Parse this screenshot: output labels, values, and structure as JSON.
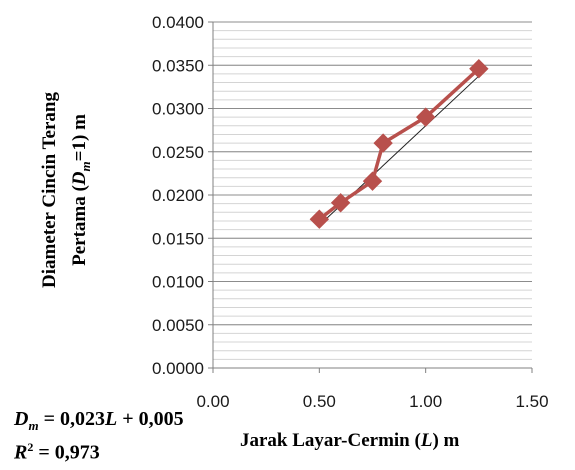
{
  "chart_data": {
    "type": "scatter",
    "ylabel_parts": [
      "Diameter Cincin Terang",
      "Pertama (",
      "D",
      "m",
      "=1) m"
    ],
    "xlabel_parts": [
      "Jarak Layar-Cermin (",
      "L",
      ") m"
    ],
    "xlim": [
      0,
      1.5
    ],
    "ylim": [
      0,
      0.04
    ],
    "xticks": [
      "0.00",
      "0.50",
      "1.00",
      "1.50"
    ],
    "xtick_values": [
      0,
      0.5,
      1.0,
      1.5
    ],
    "yticks": [
      "0.0000",
      "0.0050",
      "0.0100",
      "0.0150",
      "0.0200",
      "0.0250",
      "0.0300",
      "0.0350",
      "0.0400"
    ],
    "ytick_values": [
      0,
      0.005,
      0.01,
      0.015,
      0.02,
      0.025,
      0.03,
      0.035,
      0.04
    ],
    "minor_grid_step": 0.001,
    "grid": true,
    "series": [
      {
        "color": "#b8504c",
        "marker": "diamond",
        "x": [
          0.5,
          0.6,
          0.75,
          0.8,
          1.0,
          1.25
        ],
        "y": [
          0.0172,
          0.0191,
          0.0216,
          0.026,
          0.029,
          0.0346
        ]
      }
    ],
    "trendline": {
      "color": "#222222",
      "slope": 0.023,
      "intercept": 0.005,
      "x_range": [
        0.5,
        1.25
      ]
    }
  },
  "equation": {
    "line1": {
      "var": "D",
      "sub": "m",
      "rest": " = 0,023",
      "var2": "L",
      "tail": " + 0,005"
    },
    "line2": {
      "var": "R",
      "sup": "2",
      "rest": " = 0,973"
    }
  }
}
